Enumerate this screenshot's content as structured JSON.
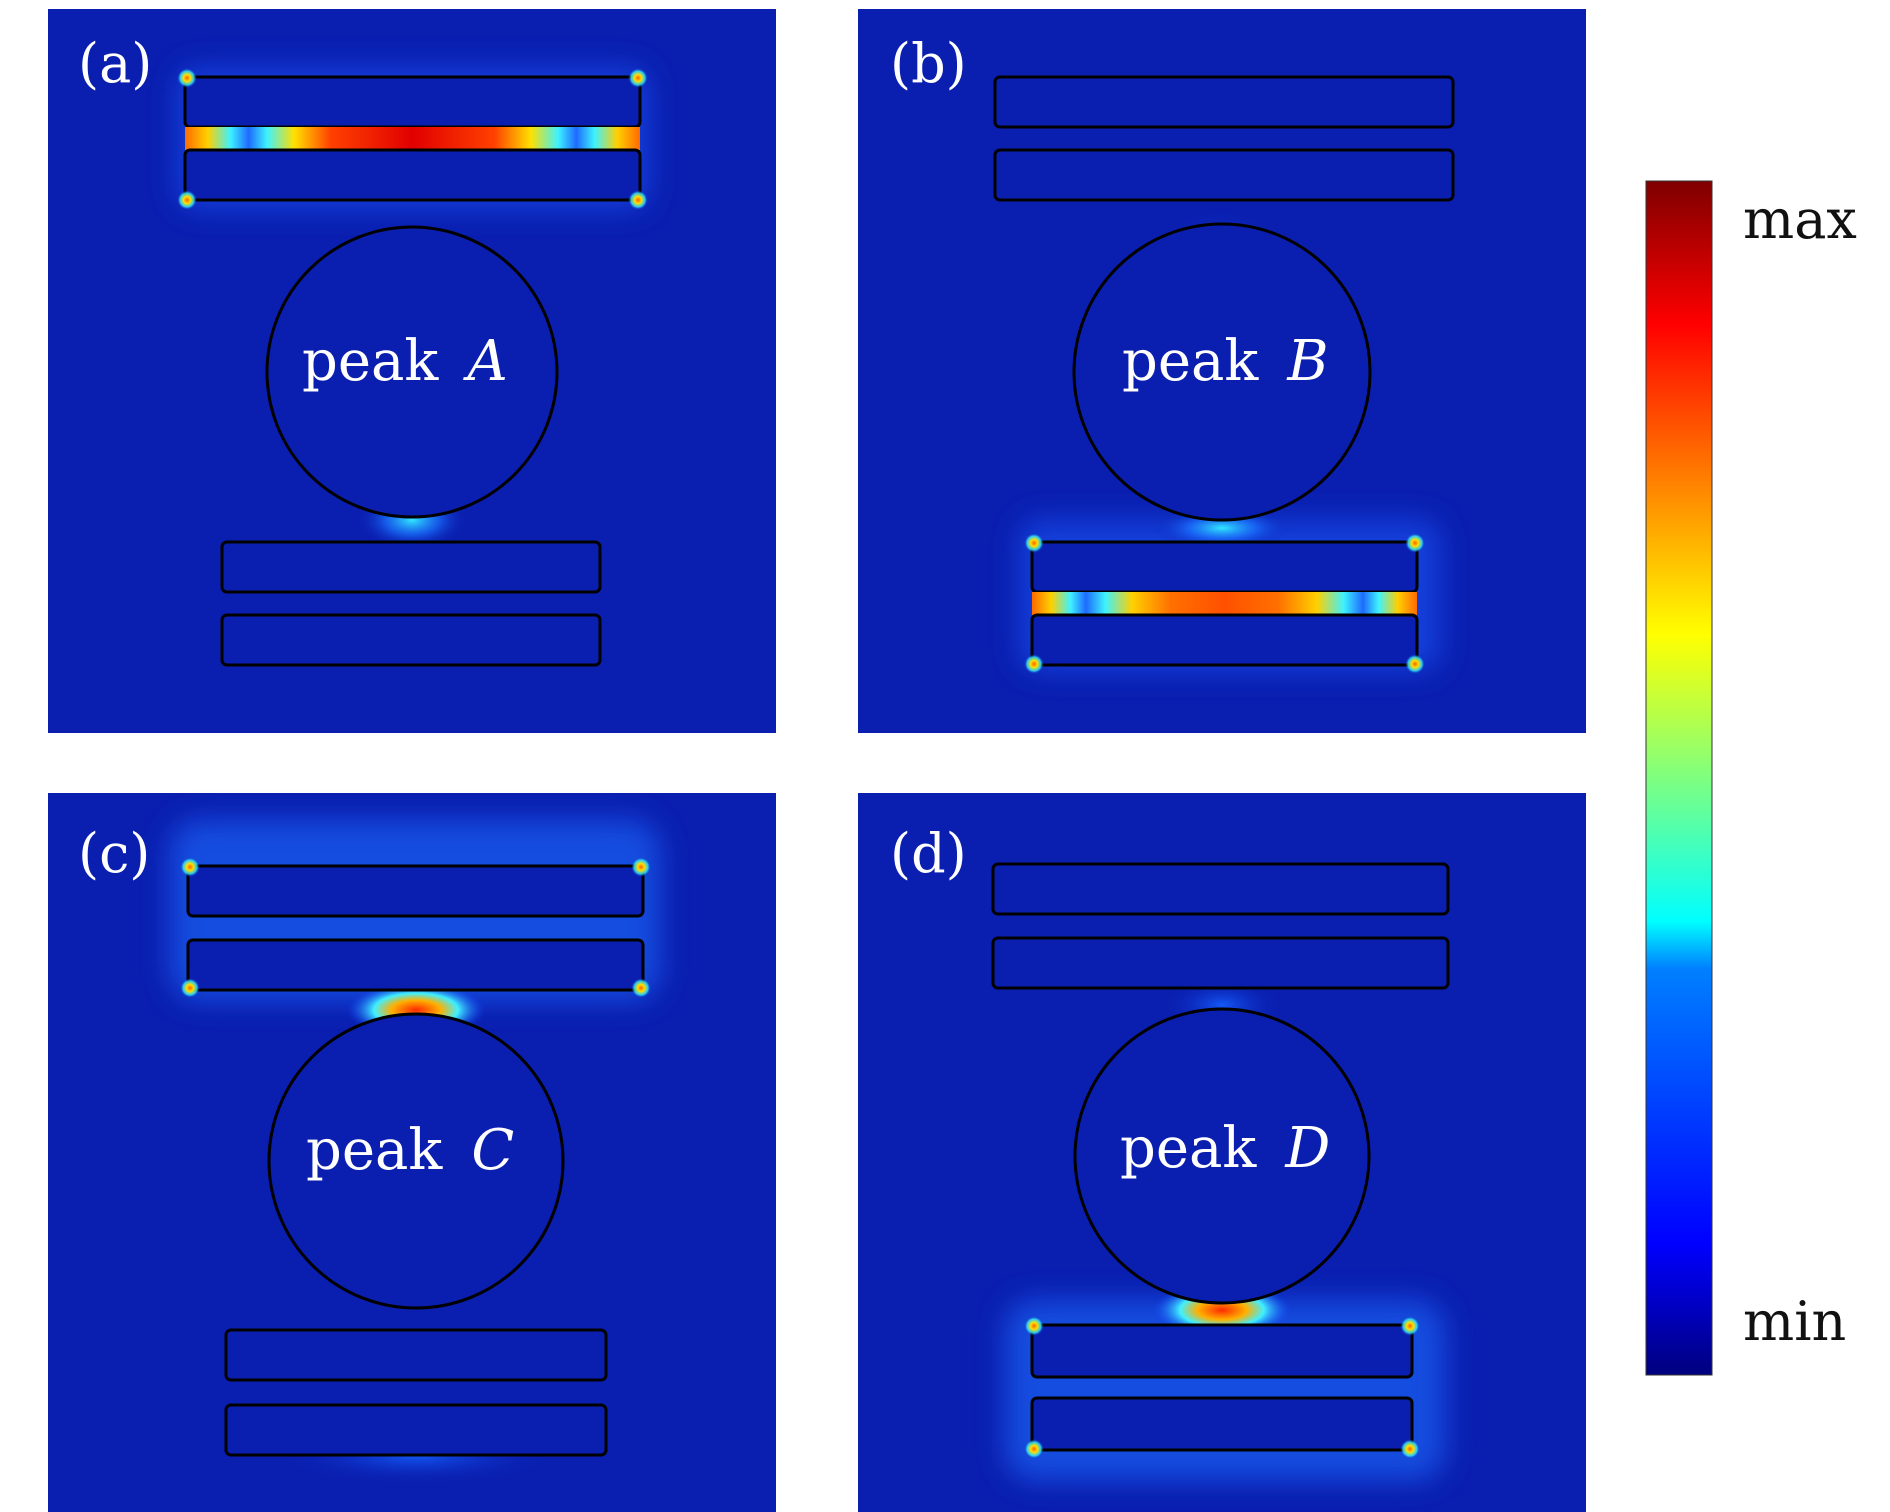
{
  "panels": [
    {
      "id": "a",
      "label": "(a)",
      "peak_word": "peak",
      "peak_letter": "A",
      "hotspot": "gap between upper pair of bars (top), standing-wave pattern"
    },
    {
      "id": "b",
      "label": "(b)",
      "peak_word": "peak",
      "peak_letter": "B",
      "hotspot": "gap between lower pair of bars (bottom), standing-wave pattern"
    },
    {
      "id": "c",
      "label": "(c)",
      "peak_word": "peak",
      "peak_letter": "C",
      "hotspot": "between circle and upper bar pair, plus upper bar corners"
    },
    {
      "id": "d",
      "label": "(d)",
      "peak_word": "peak",
      "peak_letter": "D",
      "hotspot": "between circle and lower bar pair, plus lower bar corners"
    }
  ],
  "colorbar": {
    "max_label": "max",
    "min_label": "min",
    "colormap": "jet",
    "colors": [
      "#00007f",
      "#0000ff",
      "#007fff",
      "#00ffff",
      "#7fff7f",
      "#ffff00",
      "#ff7f00",
      "#ff0000",
      "#7f0000"
    ]
  },
  "background_color": "#0a1fb0"
}
